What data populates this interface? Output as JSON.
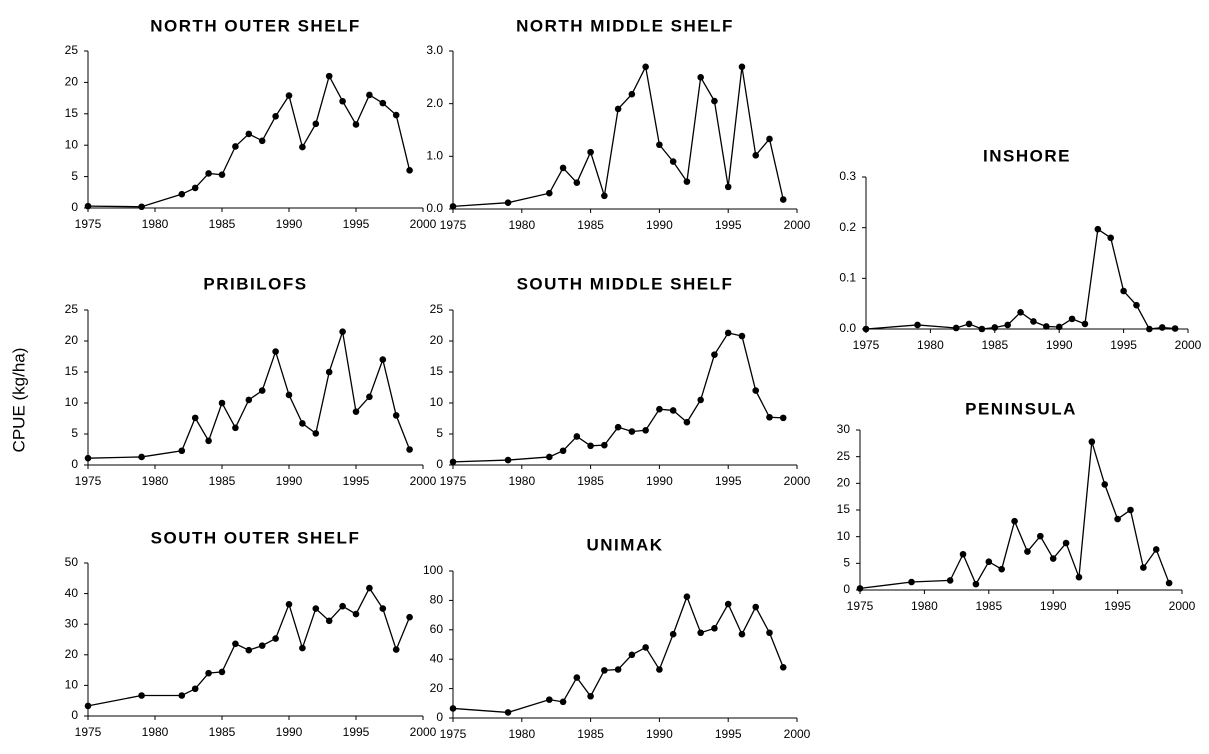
{
  "y_label": "CPUE (kg/ha)",
  "chart_data": [
    {
      "type": "line",
      "title": "NORTH OUTER SHELF",
      "color": "#000000",
      "x": [
        1975,
        1979,
        1982,
        1983,
        1984,
        1985,
        1986,
        1987,
        1988,
        1989,
        1990,
        1991,
        1992,
        1993,
        1994,
        1995,
        1996,
        1997,
        1998,
        1999
      ],
      "values": [
        0.3,
        0.2,
        2.2,
        3.2,
        5.5,
        5.3,
        9.8,
        11.8,
        10.7,
        14.6,
        17.9,
        9.7,
        13.4,
        21,
        17,
        13.3,
        18,
        16.7,
        14.8,
        6
      ],
      "xlim": [
        1975,
        2000
      ],
      "xticks": [
        1975,
        1980,
        1985,
        1990,
        1995,
        2000
      ],
      "ylim": [
        0,
        25
      ],
      "yticks": [
        0,
        5,
        10,
        15,
        20,
        25
      ]
    },
    {
      "type": "line",
      "title": "NORTH MIDDLE SHELF",
      "color": "#000000",
      "x": [
        1975,
        1979,
        1982,
        1983,
        1984,
        1985,
        1986,
        1987,
        1988,
        1989,
        1990,
        1991,
        1992,
        1993,
        1994,
        1995,
        1996,
        1997,
        1998,
        1999
      ],
      "values": [
        0.05,
        0.12,
        0.3,
        0.78,
        0.5,
        1.08,
        0.25,
        1.9,
        2.18,
        2.7,
        1.22,
        0.9,
        0.52,
        2.5,
        2.05,
        0.42,
        2.7,
        1.02,
        1.33,
        0.18
      ],
      "xlim": [
        1975,
        2000
      ],
      "xticks": [
        1975,
        1980,
        1985,
        1990,
        1995,
        2000
      ],
      "ylim": [
        0,
        3
      ],
      "yticks": [
        {
          "value": 0,
          "label": "0.0"
        },
        {
          "value": 1,
          "label": "1.0"
        },
        {
          "value": 2,
          "label": "2.0"
        },
        {
          "value": 3,
          "label": "3.0"
        }
      ]
    },
    {
      "type": "line",
      "title": "INSHORE",
      "color": "#000000",
      "x": [
        1975,
        1979,
        1982,
        1983,
        1984,
        1985,
        1986,
        1987,
        1988,
        1989,
        1990,
        1991,
        1992,
        1993,
        1994,
        1995,
        1996,
        1997,
        1998,
        1999
      ],
      "values": [
        0,
        0.008,
        0.002,
        0.01,
        0,
        0.003,
        0.008,
        0.033,
        0.015,
        0.005,
        0.004,
        0.02,
        0.01,
        0.197,
        0.18,
        0.075,
        0.047,
        0,
        0.003,
        0.001
      ],
      "xlim": [
        1975,
        2000
      ],
      "xticks": [
        1975,
        1980,
        1985,
        1990,
        1995,
        2000
      ],
      "ylim": [
        0,
        0.3
      ],
      "yticks": [
        {
          "value": 0,
          "label": "0.0"
        },
        {
          "value": 0.1,
          "label": "0.1"
        },
        {
          "value": 0.2,
          "label": "0.2"
        },
        {
          "value": 0.3,
          "label": "0.3"
        }
      ]
    },
    {
      "type": "line",
      "title": "PRIBILOFS",
      "color": "#000000",
      "x": [
        1975,
        1979,
        1982,
        1983,
        1984,
        1985,
        1986,
        1987,
        1988,
        1989,
        1990,
        1991,
        1992,
        1993,
        1994,
        1995,
        1996,
        1997,
        1998,
        1999
      ],
      "values": [
        1.1,
        1.3,
        2.3,
        7.6,
        3.9,
        10,
        6,
        10.5,
        12,
        18.3,
        11.3,
        6.7,
        5.1,
        15,
        21.5,
        8.6,
        11,
        17,
        8,
        2.5
      ],
      "xlim": [
        1975,
        2000
      ],
      "xticks": [
        1975,
        1980,
        1985,
        1990,
        1995,
        2000
      ],
      "ylim": [
        0,
        25
      ],
      "yticks": [
        0,
        5,
        10,
        15,
        20,
        25
      ]
    },
    {
      "type": "line",
      "title": "SOUTH MIDDLE SHELF",
      "color": "#000000",
      "x": [
        1975,
        1979,
        1982,
        1983,
        1984,
        1985,
        1986,
        1987,
        1988,
        1989,
        1990,
        1991,
        1992,
        1993,
        1994,
        1995,
        1996,
        1997,
        1998,
        1999
      ],
      "values": [
        0.5,
        0.8,
        1.3,
        2.3,
        4.6,
        3.1,
        3.2,
        6.1,
        5.4,
        5.6,
        9,
        8.8,
        6.9,
        10.5,
        17.8,
        21.3,
        20.8,
        12,
        7.7,
        7.6
      ],
      "xlim": [
        1975,
        2000
      ],
      "xticks": [
        1975,
        1980,
        1985,
        1990,
        1995,
        2000
      ],
      "ylim": [
        0,
        25
      ],
      "yticks": [
        0,
        5,
        10,
        15,
        20,
        25
      ]
    },
    {
      "type": "line",
      "title": "PENINSULA",
      "color": "#000000",
      "x": [
        1975,
        1979,
        1982,
        1983,
        1984,
        1985,
        1986,
        1987,
        1988,
        1989,
        1990,
        1991,
        1992,
        1993,
        1994,
        1995,
        1996,
        1997,
        1998,
        1999
      ],
      "values": [
        0.3,
        1.5,
        1.8,
        6.7,
        1.1,
        5.3,
        3.9,
        12.9,
        7.2,
        10.1,
        5.9,
        8.8,
        2.4,
        27.8,
        19.8,
        13.3,
        15,
        4.2,
        7.6,
        1.3
      ],
      "xlim": [
        1975,
        2000
      ],
      "xticks": [
        1975,
        1980,
        1985,
        1990,
        1995,
        2000
      ],
      "ylim": [
        0,
        30
      ],
      "yticks": [
        0,
        5,
        10,
        15,
        20,
        25,
        30
      ]
    },
    {
      "type": "line",
      "title": "SOUTH OUTER SHELF",
      "color": "#000000",
      "x": [
        1975,
        1979,
        1982,
        1983,
        1984,
        1985,
        1986,
        1987,
        1988,
        1989,
        1990,
        1991,
        1992,
        1993,
        1994,
        1995,
        1996,
        1997,
        1998,
        1999
      ],
      "values": [
        3.3,
        6.7,
        6.7,
        8.9,
        14,
        14.4,
        23.6,
        21.5,
        23,
        25.3,
        36.5,
        22.2,
        35.1,
        31.1,
        35.9,
        33.3,
        41.8,
        35.1,
        21.7,
        32.3
      ],
      "xlim": [
        1975,
        2000
      ],
      "xticks": [
        1975,
        1980,
        1985,
        1990,
        1995,
        2000
      ],
      "ylim": [
        0,
        50
      ],
      "yticks": [
        0,
        10,
        20,
        30,
        40,
        50
      ]
    },
    {
      "type": "line",
      "title": "UNIMAK",
      "color": "#000000",
      "x": [
        1975,
        1979,
        1982,
        1983,
        1984,
        1985,
        1986,
        1987,
        1988,
        1989,
        1990,
        1991,
        1992,
        1993,
        1994,
        1995,
        1996,
        1997,
        1998,
        1999
      ],
      "values": [
        6.5,
        3.8,
        12.5,
        11,
        27.5,
        14.8,
        32.4,
        33,
        43,
        48,
        33,
        57,
        82.5,
        58,
        61,
        77.5,
        57,
        75.5,
        58,
        34.5
      ],
      "xlim": [
        1975,
        2000
      ],
      "xticks": [
        1975,
        1980,
        1985,
        1990,
        1995,
        2000
      ],
      "ylim": [
        0,
        100
      ],
      "yticks": [
        0,
        20,
        40,
        60,
        80,
        100
      ]
    }
  ]
}
